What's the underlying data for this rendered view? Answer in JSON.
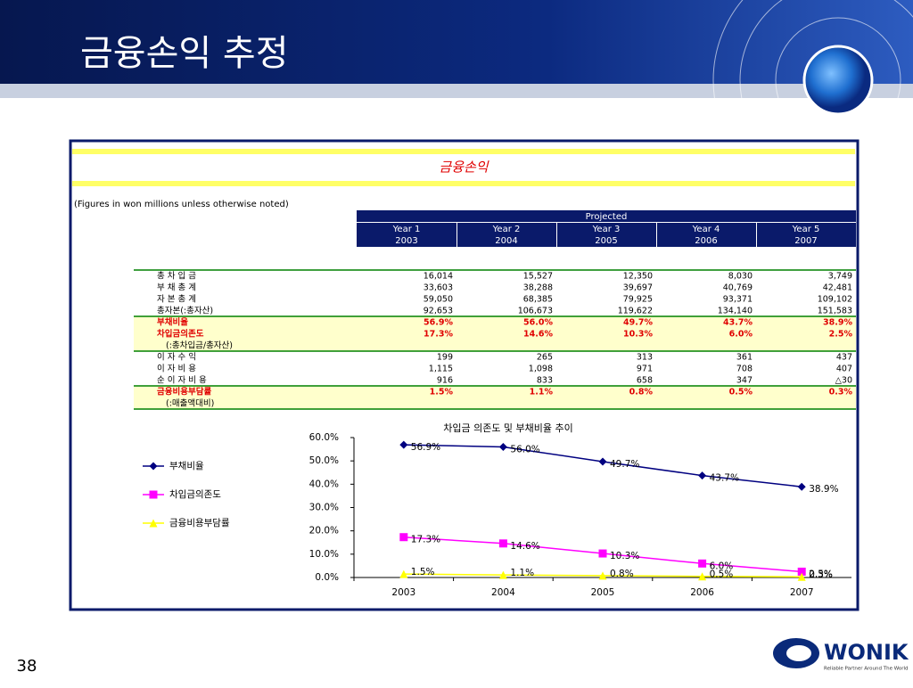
{
  "slide": {
    "title": "금융손익 추정",
    "page_number": "38"
  },
  "logo": {
    "name": "WONIK",
    "tagline": "Reliable Partner Around The World"
  },
  "table": {
    "title": "금융손익",
    "note": "(Figures in won millions unless otherwise noted)",
    "projected": "Projected",
    "columns": [
      {
        "year": "Year 1",
        "date": "2003"
      },
      {
        "year": "Year 2",
        "date": "2004"
      },
      {
        "year": "Year 3",
        "date": "2005"
      },
      {
        "year": "Year 4",
        "date": "2006"
      },
      {
        "year": "Year 5",
        "date": "2007"
      }
    ],
    "rows": [
      {
        "label": "총 차 입 금",
        "values": [
          "16,014",
          "15,527",
          "12,350",
          "8,030",
          "3,749"
        ],
        "highlight": false
      },
      {
        "label": "부 채 총 계",
        "values": [
          "33,603",
          "38,288",
          "39,697",
          "40,769",
          "42,481"
        ],
        "highlight": false
      },
      {
        "label": "자 본 총 계",
        "values": [
          "59,050",
          "68,385",
          "79,925",
          "93,371",
          "109,102"
        ],
        "highlight": false
      },
      {
        "label": "총자본(:총자산)",
        "values": [
          "92,653",
          "106,673",
          "119,622",
          "134,140",
          "151,583"
        ],
        "highlight": false
      },
      {
        "label": "부채비율",
        "values": [
          "56.9%",
          "56.0%",
          "49.7%",
          "43.7%",
          "38.9%"
        ],
        "highlight": true
      },
      {
        "label": "차입금의존도",
        "note": "(:총차입금/총자산)",
        "values": [
          "17.3%",
          "14.6%",
          "10.3%",
          "6.0%",
          "2.5%"
        ],
        "highlight": true
      },
      {
        "label": "이 자 수 익",
        "values": [
          "199",
          "265",
          "313",
          "361",
          "437"
        ],
        "highlight": false
      },
      {
        "label": "이 자 비 용",
        "values": [
          "1,115",
          "1,098",
          "971",
          "708",
          "407"
        ],
        "highlight": false
      },
      {
        "label": "순 이 자 비 용",
        "values": [
          "916",
          "833",
          "658",
          "347",
          "△30"
        ],
        "highlight": false
      },
      {
        "label": "금융비용부담률",
        "note": "(:매출액대비)",
        "values": [
          "1.5%",
          "1.1%",
          "0.8%",
          "0.5%",
          "0.3%"
        ],
        "highlight": true
      }
    ]
  },
  "chart_data": {
    "type": "line",
    "title": "차입금 의존도 및 부채비율 추이",
    "categories": [
      "2003",
      "2004",
      "2005",
      "2006",
      "2007"
    ],
    "series": [
      {
        "name": "부채비율",
        "color": "#000080",
        "marker": "diamond",
        "values": [
          56.9,
          56.0,
          49.7,
          43.7,
          38.9
        ],
        "value_labels": [
          "56.9%",
          "56.0%",
          "49.7%",
          "43.7%",
          "38.9%"
        ]
      },
      {
        "name": "차입금의존도",
        "color": "#ff00ff",
        "marker": "square",
        "values": [
          17.3,
          14.6,
          10.3,
          6.0,
          2.5
        ],
        "value_labels": [
          "17.3%",
          "14.6%",
          "10.3%",
          "6.0%",
          "2.5%"
        ]
      },
      {
        "name": "금융비용부담률",
        "color": "#ffff00",
        "marker": "triangle",
        "values": [
          1.5,
          1.1,
          0.8,
          0.5,
          0.3
        ],
        "value_labels": [
          "1.5%",
          "1.1%",
          "0.8%",
          "0.5%",
          "0.3%"
        ]
      }
    ],
    "ylim": [
      0,
      60
    ],
    "yticks": [
      {
        "value": 0,
        "label": "0.0%"
      },
      {
        "value": 10,
        "label": "10.0%"
      },
      {
        "value": 20,
        "label": "20.0%"
      },
      {
        "value": 30,
        "label": "30.0%"
      },
      {
        "value": 40,
        "label": "40.0%"
      },
      {
        "value": 50,
        "label": "50.0%"
      },
      {
        "value": 60,
        "label": "60.0%"
      }
    ],
    "legend": "left",
    "grid": false
  }
}
